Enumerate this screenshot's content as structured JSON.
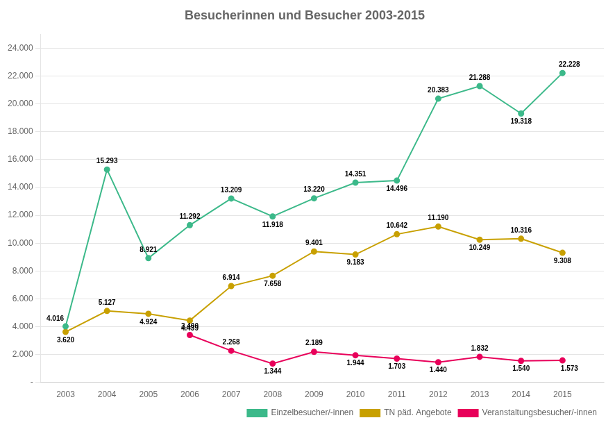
{
  "chart_data": {
    "type": "line",
    "title": "Besucherinnen und Besucher 2003-2015",
    "x": [
      2003,
      2004,
      2005,
      2006,
      2007,
      2008,
      2009,
      2010,
      2011,
      2012,
      2013,
      2014,
      2015
    ],
    "series": [
      {
        "name": "Einzelbesucher/-innen",
        "color": "#3CB98A",
        "marker": "circle",
        "values": [
          4016,
          15293,
          8921,
          11292,
          13209,
          11918,
          13220,
          14351,
          14496,
          20383,
          21288,
          19318,
          22228
        ],
        "value_labels": [
          "4.016",
          "15.293",
          "8.921",
          "11.292",
          "13.209",
          "11.918",
          "13.220",
          "14.351",
          "14.496",
          "20.383",
          "21.288",
          "19.318",
          "22.228"
        ]
      },
      {
        "name": "TN päd. Angebote",
        "color": "#C8A000",
        "marker": "circle",
        "values": [
          3620,
          5127,
          4924,
          4439,
          6914,
          7658,
          9401,
          9183,
          10642,
          11190,
          10249,
          10316,
          9308
        ],
        "value_labels": [
          "3.620",
          "5.127",
          "4.924",
          "4.439",
          "6.914",
          "7.658",
          "9.401",
          "9.183",
          "10.642",
          "11.190",
          "10.249",
          "10.316",
          "9.308"
        ]
      },
      {
        "name": "Veranstaltungsbesucher/-innen",
        "color": "#E8005A",
        "marker": "circle",
        "values": [
          null,
          null,
          null,
          3400,
          2268,
          1344,
          2189,
          1944,
          1703,
          1440,
          1832,
          1540,
          1573
        ],
        "value_labels": [
          null,
          null,
          null,
          "3.400",
          "2.268",
          "1.344",
          "2.189",
          "1.944",
          "1.703",
          "1.440",
          "1.832",
          "1.540",
          "1.573"
        ]
      }
    ],
    "xlim": [
      2002.4,
      2016.0
    ],
    "xticks": [
      2003,
      2004,
      2005,
      2006,
      2007,
      2008,
      2009,
      2010,
      2011,
      2012,
      2013,
      2014,
      2015
    ],
    "ylim": [
      0,
      25000
    ],
    "yticks": [
      {
        "value": 0,
        "label": "-"
      },
      {
        "value": 2000,
        "label": "2.000"
      },
      {
        "value": 4000,
        "label": "4.000"
      },
      {
        "value": 6000,
        "label": "6.000"
      },
      {
        "value": 8000,
        "label": "8.000"
      },
      {
        "value": 10000,
        "label": "10.000"
      },
      {
        "value": 12000,
        "label": "12.000"
      },
      {
        "value": 14000,
        "label": "14.000"
      },
      {
        "value": 16000,
        "label": "16.000"
      },
      {
        "value": 18000,
        "label": "18.000"
      },
      {
        "value": 20000,
        "label": "20.000"
      },
      {
        "value": 22000,
        "label": "22.000"
      },
      {
        "value": 24000,
        "label": "24.000"
      }
    ],
    "grid": "y",
    "legend": "lower right",
    "data_labels": true
  }
}
